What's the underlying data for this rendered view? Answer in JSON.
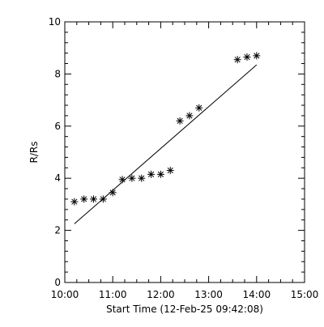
{
  "chart_data": {
    "type": "scatter",
    "xlabel": "Start Time (12-Feb-25 09:42:08)",
    "ylabel": "R/Rs",
    "xlim": [
      "10:00",
      "15:00"
    ],
    "ylim": [
      0,
      10
    ],
    "xticks": [
      "10:00",
      "11:00",
      "12:00",
      "13:00",
      "14:00",
      "15:00"
    ],
    "yticks": [
      "0",
      "2",
      "4",
      "6",
      "8",
      "10"
    ],
    "grid": false,
    "marker": "asterisk",
    "points": [
      {
        "x": "10:12",
        "y": 3.1
      },
      {
        "x": "10:24",
        "y": 3.2
      },
      {
        "x": "10:36",
        "y": 3.2
      },
      {
        "x": "10:48",
        "y": 3.2
      },
      {
        "x": "11:00",
        "y": 3.45
      },
      {
        "x": "11:12",
        "y": 3.95
      },
      {
        "x": "11:24",
        "y": 4.0
      },
      {
        "x": "11:36",
        "y": 4.0
      },
      {
        "x": "11:48",
        "y": 4.15
      },
      {
        "x": "12:00",
        "y": 4.15
      },
      {
        "x": "12:12",
        "y": 4.3
      },
      {
        "x": "12:24",
        "y": 6.2
      },
      {
        "x": "12:36",
        "y": 6.4
      },
      {
        "x": "12:48",
        "y": 6.7
      },
      {
        "x": "13:36",
        "y": 8.55
      },
      {
        "x": "13:48",
        "y": 8.65
      },
      {
        "x": "14:00",
        "y": 8.7
      }
    ],
    "fit_line": [
      {
        "x": "10:12",
        "y": 2.25
      },
      {
        "x": "14:00",
        "y": 8.35
      }
    ],
    "colors": {
      "background": "#ffffff",
      "foreground": "#000000"
    }
  }
}
